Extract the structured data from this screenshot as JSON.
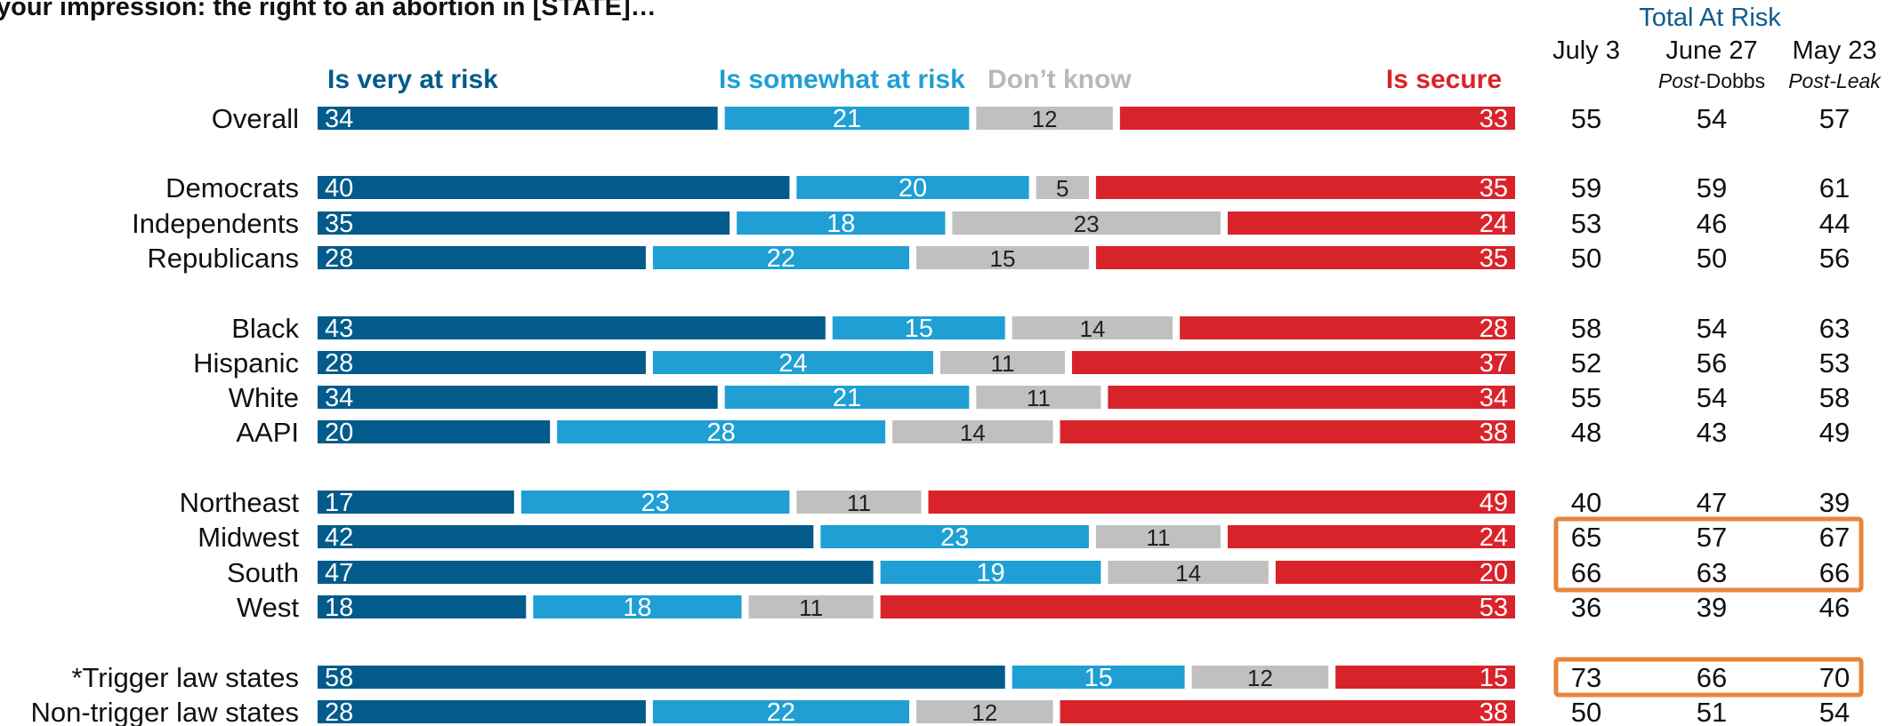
{
  "chart_data": {
    "type": "bar",
    "stacked": true,
    "orientation": "horizontal",
    "title": "your impression: the right to an abortion in [STATE]…",
    "legend_placement": "top",
    "series": [
      {
        "name": "Is very at risk",
        "color": "#025b8a",
        "values": [
          34,
          40,
          35,
          28,
          43,
          28,
          34,
          20,
          17,
          42,
          47,
          18,
          58,
          28
        ]
      },
      {
        "name": "Is somewhat at risk",
        "color": "#1f9fd4",
        "values": [
          21,
          20,
          18,
          22,
          15,
          24,
          21,
          28,
          23,
          23,
          19,
          18,
          15,
          22
        ]
      },
      {
        "name": "Don’t know",
        "color": "#c0c0c0",
        "values": [
          12,
          5,
          23,
          15,
          14,
          11,
          11,
          14,
          11,
          11,
          14,
          11,
          12,
          12
        ]
      },
      {
        "name": "Is secure",
        "color": "#d9232a",
        "values": [
          33,
          35,
          24,
          35,
          28,
          37,
          34,
          38,
          49,
          24,
          20,
          53,
          15,
          38
        ]
      }
    ],
    "categories": [
      "Overall",
      "Democrats",
      "Independents",
      "Republicans",
      "Black",
      "Hispanic",
      "White",
      "AAPI",
      "Northeast",
      "Midwest",
      "South",
      "West",
      "*Trigger law states",
      "Non-trigger law states"
    ],
    "groups": [
      [
        0
      ],
      [
        1,
        2,
        3
      ],
      [
        4,
        5,
        6,
        7
      ],
      [
        8,
        9,
        10,
        11
      ],
      [
        12,
        13
      ]
    ],
    "table": {
      "title": "Total At Risk",
      "columns": [
        {
          "header": "July 3",
          "sub_prefix": "",
          "sub_suffix": "",
          "values": [
            55,
            59,
            53,
            50,
            58,
            52,
            55,
            48,
            40,
            65,
            66,
            36,
            73,
            50
          ]
        },
        {
          "header": "June 27",
          "sub_prefix": "Post-",
          "sub_suffix": "Dobbs",
          "values": [
            54,
            59,
            46,
            50,
            54,
            56,
            54,
            43,
            47,
            57,
            63,
            39,
            66,
            51
          ]
        },
        {
          "header": "May 23",
          "sub_prefix": "Post-Leak",
          "sub_suffix": "",
          "values": [
            57,
            61,
            44,
            56,
            63,
            53,
            58,
            49,
            39,
            67,
            66,
            46,
            70,
            54
          ]
        }
      ],
      "highlight_color": "#e8843a",
      "highlighted_row_groups": [
        [
          9,
          10
        ],
        [
          12
        ]
      ]
    }
  }
}
